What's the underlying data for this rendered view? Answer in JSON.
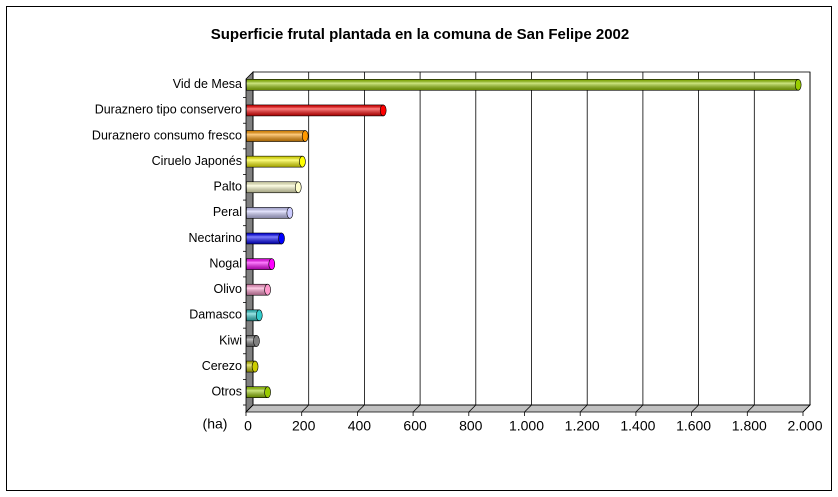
{
  "chart_data": {
    "type": "bar",
    "orientation": "horizontal",
    "title": "Superficie frutal plantada en la comuna de San Felipe 2002",
    "x_label": "(ha)",
    "categories": [
      "Vid de Mesa",
      "Duraznero tipo conservero",
      "Duraznero consumo fresco",
      "Ciruelo Japonés",
      "Palto",
      "Peral",
      "Nectarino",
      "Nogal",
      "Olivo",
      "Damasco",
      "Kiwi",
      "Cerezo",
      "Otros"
    ],
    "values": [
      1970,
      480,
      200,
      190,
      175,
      145,
      115,
      80,
      65,
      35,
      25,
      20,
      65
    ],
    "colors": [
      "#99cc00",
      "#ff0000",
      "#ff9900",
      "#ffff00",
      "#ffffcc",
      "#ccccff",
      "#0000ff",
      "#ff00ff",
      "#ff99cc",
      "#33cccc",
      "#808080",
      "#cccc00",
      "#99cc00"
    ],
    "xlim": [
      0,
      2000
    ],
    "xticks": [
      0,
      200,
      400,
      600,
      800,
      {
        "value": 1000,
        "label": "1.000"
      },
      {
        "value": 1200,
        "label": "1.200"
      },
      {
        "value": 1400,
        "label": "1.400"
      },
      {
        "value": 1600,
        "label": "1.600"
      },
      {
        "value": 1800,
        "label": "1.800"
      },
      {
        "value": 2000,
        "label": "2.000"
      }
    ],
    "grid": true
  }
}
